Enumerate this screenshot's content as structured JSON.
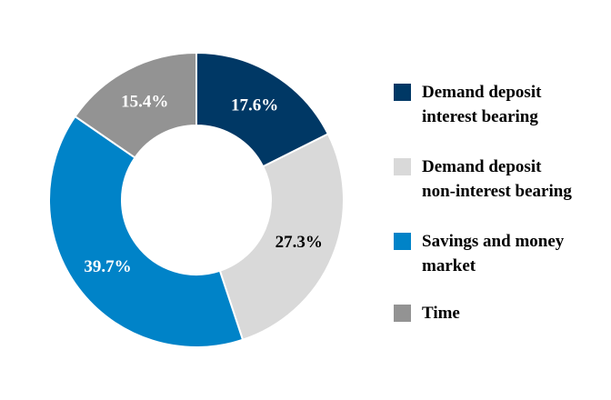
{
  "chart_data": {
    "type": "pie",
    "variant": "donut",
    "title": "",
    "legend_position": "right",
    "slices": [
      {
        "name": "Demand deposit interest bearing",
        "legend_label": "Demand deposit\ninterest bearing",
        "value": 17.6,
        "label": "17.6%",
        "color": "#003865",
        "label_color": "#ffffff"
      },
      {
        "name": "Demand deposit non-interest bearing",
        "legend_label": "Demand deposit\nnon-interest bearing",
        "value": 27.3,
        "label": "27.3%",
        "color": "#d9d9d9",
        "label_color": "#000000"
      },
      {
        "name": "Savings and money market",
        "legend_label": "Savings and money\nmarket",
        "value": 39.7,
        "label": "39.7%",
        "color": "#0083c8",
        "label_color": "#ffffff"
      },
      {
        "name": "Time",
        "legend_label": "Time",
        "value": 15.4,
        "label": "15.4%",
        "color": "#939393",
        "label_color": "#ffffff"
      }
    ]
  }
}
